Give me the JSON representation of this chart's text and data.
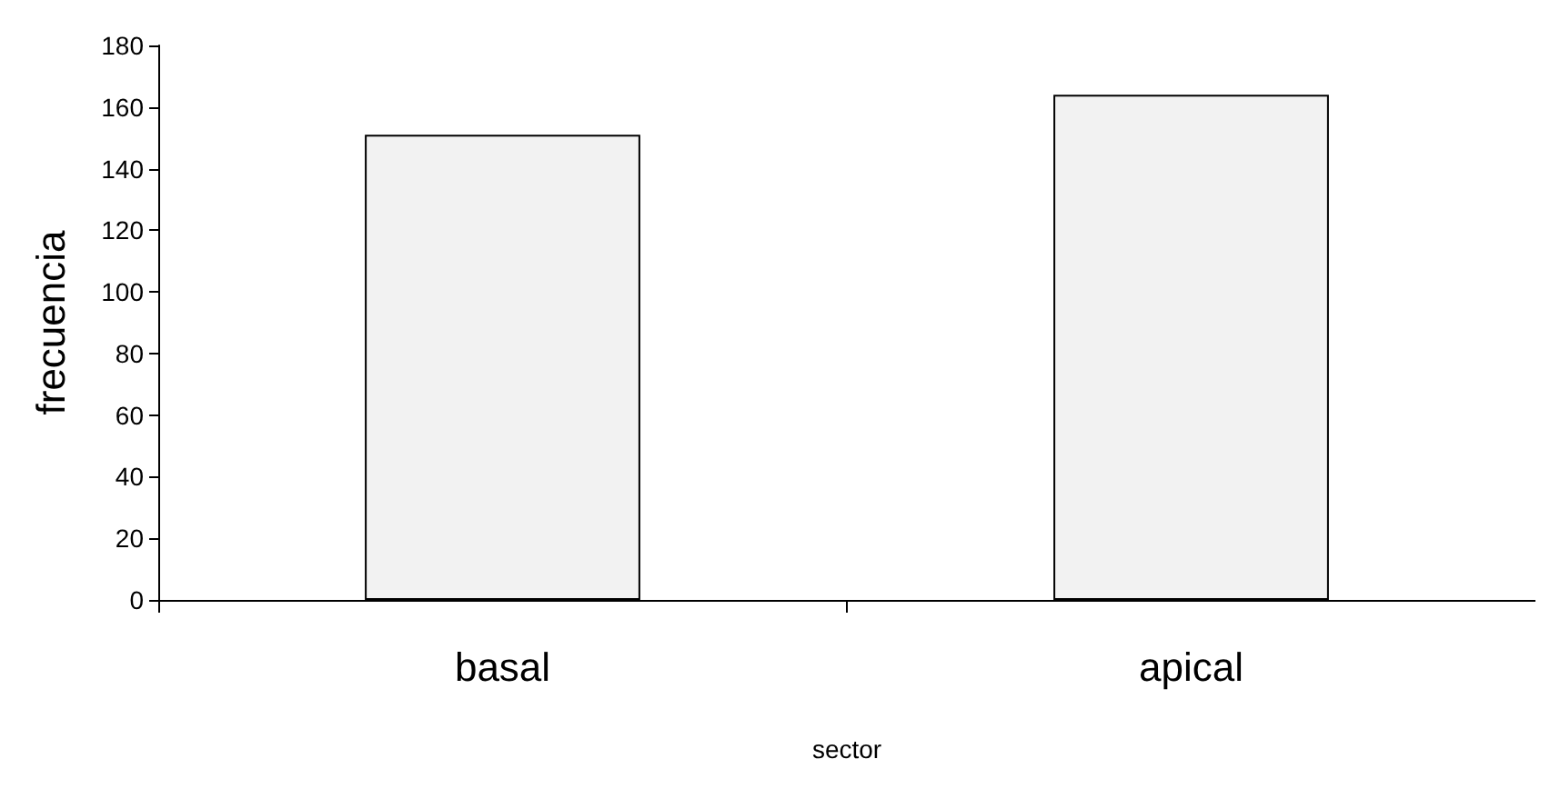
{
  "chart_data": {
    "type": "bar",
    "xlabel": "sector",
    "ylabel": "frecuencia",
    "categories": [
      "basal",
      "apical"
    ],
    "values": [
      151,
      164
    ],
    "color": "#f2f2f2",
    "ylim": [
      0,
      180
    ],
    "yticks": [
      0,
      20,
      40,
      60,
      80,
      100,
      120,
      140,
      160,
      180
    ],
    "grid": false
  }
}
